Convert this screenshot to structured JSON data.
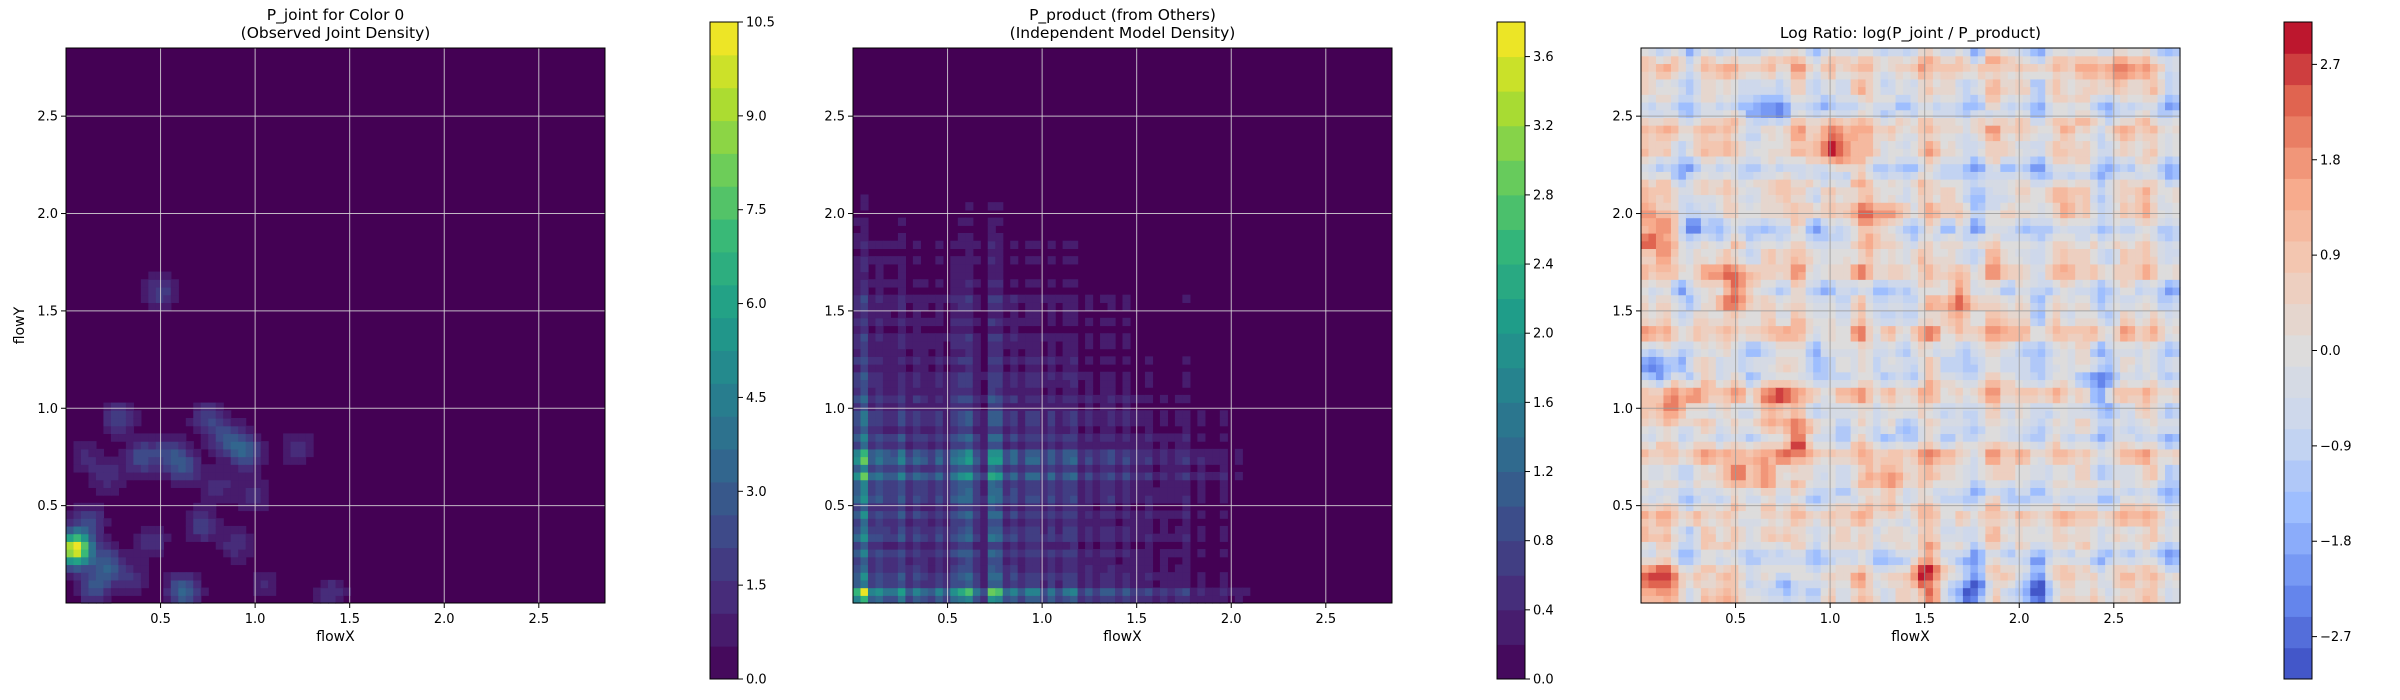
{
  "chart_data": [
    {
      "type": "heatmap",
      "title": "P_joint for Color 0\n(Observed Joint Density)",
      "xlabel": "flowX",
      "ylabel": "flowY",
      "xlim": [
        0.0,
        2.85
      ],
      "ylim": [
        0.0,
        2.85
      ],
      "xticks": [
        0.5,
        1.0,
        1.5,
        2.0,
        2.5
      ],
      "xtick_labels": [
        "0.5",
        "1.0",
        "1.5",
        "2.0",
        "2.5"
      ],
      "yticks": [
        0.5,
        1.0,
        1.5,
        2.0,
        2.5
      ],
      "ytick_labels": [
        "0.5",
        "1.0",
        "1.5",
        "2.0",
        "2.5"
      ],
      "grid": true,
      "colormap": "viridis",
      "colorbar": {
        "min": 0.0,
        "max": 10.5,
        "levels": 20,
        "ticks": [
          0.0,
          1.5,
          3.0,
          4.5,
          6.0,
          7.5,
          9.0,
          10.5
        ],
        "tick_labels": [
          "0.0",
          "1.5",
          "3.0",
          "4.5",
          "6.0",
          "7.5",
          "9.0",
          "10.5"
        ]
      },
      "hotspots": [
        {
          "x": 0.05,
          "y": 0.28,
          "value": 10.5
        },
        {
          "x": 0.22,
          "y": 0.2,
          "value": 3.0
        },
        {
          "x": 0.15,
          "y": 0.08,
          "value": 2.5
        },
        {
          "x": 0.62,
          "y": 0.06,
          "value": 3.5
        },
        {
          "x": 0.12,
          "y": 0.42,
          "value": 2.0
        },
        {
          "x": 0.28,
          "y": 0.95,
          "value": 2.0
        },
        {
          "x": 0.4,
          "y": 0.75,
          "value": 2.5
        },
        {
          "x": 0.55,
          "y": 0.78,
          "value": 2.0
        },
        {
          "x": 0.62,
          "y": 0.7,
          "value": 2.5
        },
        {
          "x": 0.75,
          "y": 0.95,
          "value": 2.0
        },
        {
          "x": 0.85,
          "y": 0.85,
          "value": 2.5
        },
        {
          "x": 0.95,
          "y": 0.78,
          "value": 3.0
        },
        {
          "x": 0.72,
          "y": 0.4,
          "value": 2.0
        },
        {
          "x": 0.9,
          "y": 0.3,
          "value": 1.5
        },
        {
          "x": 0.45,
          "y": 0.32,
          "value": 1.5
        },
        {
          "x": 0.35,
          "y": 0.12,
          "value": 1.5
        },
        {
          "x": 0.5,
          "y": 1.6,
          "value": 2.0
        },
        {
          "x": 1.22,
          "y": 0.8,
          "value": 1.5
        },
        {
          "x": 1.0,
          "y": 0.55,
          "value": 1.5
        },
        {
          "x": 1.4,
          "y": 0.05,
          "value": 1.5
        },
        {
          "x": 1.05,
          "y": 0.1,
          "value": 1.2
        },
        {
          "x": 0.22,
          "y": 0.65,
          "value": 1.5
        },
        {
          "x": 0.1,
          "y": 0.75,
          "value": 1.2
        },
        {
          "x": 0.8,
          "y": 0.6,
          "value": 1.5
        }
      ]
    },
    {
      "type": "heatmap",
      "title": "P_product (from Others)\n(Independent Model Density)",
      "xlabel": "flowX",
      "ylabel": "",
      "xlim": [
        0.0,
        2.85
      ],
      "ylim": [
        0.0,
        2.85
      ],
      "xticks": [
        0.5,
        1.0,
        1.5,
        2.0,
        2.5
      ],
      "xtick_labels": [
        "0.5",
        "1.0",
        "1.5",
        "2.0",
        "2.5"
      ],
      "yticks": [
        0.5,
        1.0,
        1.5,
        2.0,
        2.5
      ],
      "ytick_labels": [
        "0.5",
        "1.0",
        "1.5",
        "2.0",
        "2.5"
      ],
      "grid": true,
      "colormap": "viridis",
      "colorbar": {
        "min": 0.0,
        "max": 3.8,
        "levels": 19,
        "ticks": [
          0.0,
          0.4,
          0.8,
          1.2,
          1.6,
          2.0,
          2.4,
          2.8,
          3.2,
          3.6
        ],
        "tick_labels": [
          "0.0",
          "0.4",
          "0.8",
          "1.2",
          "1.6",
          "2.0",
          "2.4",
          "2.8",
          "3.2",
          "3.6"
        ]
      },
      "x_marginal_peaks": [
        {
          "x": 0.05,
          "w": 1.0
        },
        {
          "x": 0.15,
          "w": 0.5
        },
        {
          "x": 0.25,
          "w": 0.55
        },
        {
          "x": 0.35,
          "w": 0.45
        },
        {
          "x": 0.45,
          "w": 0.4
        },
        {
          "x": 0.55,
          "w": 0.55
        },
        {
          "x": 0.62,
          "w": 0.65
        },
        {
          "x": 0.75,
          "w": 0.9
        },
        {
          "x": 0.85,
          "w": 0.45
        },
        {
          "x": 0.95,
          "w": 0.5
        },
        {
          "x": 1.05,
          "w": 0.4
        },
        {
          "x": 1.15,
          "w": 0.5
        },
        {
          "x": 1.25,
          "w": 0.3
        },
        {
          "x": 1.35,
          "w": 0.35
        },
        {
          "x": 1.45,
          "w": 0.3
        },
        {
          "x": 1.55,
          "w": 0.25
        },
        {
          "x": 1.65,
          "w": 0.2
        },
        {
          "x": 1.75,
          "w": 0.25
        },
        {
          "x": 1.85,
          "w": 0.15
        },
        {
          "x": 1.95,
          "w": 0.15
        },
        {
          "x": 2.05,
          "w": 0.1
        }
      ],
      "y_marginal_peaks": [
        {
          "y": 0.05,
          "w": 1.0
        },
        {
          "y": 0.15,
          "w": 0.45
        },
        {
          "y": 0.25,
          "w": 0.4
        },
        {
          "y": 0.35,
          "w": 0.5
        },
        {
          "y": 0.45,
          "w": 0.45
        },
        {
          "y": 0.55,
          "w": 0.55
        },
        {
          "y": 0.65,
          "w": 0.75
        },
        {
          "y": 0.75,
          "w": 0.85
        },
        {
          "y": 0.85,
          "w": 0.45
        },
        {
          "y": 0.95,
          "w": 0.45
        },
        {
          "y": 1.05,
          "w": 0.35
        },
        {
          "y": 1.15,
          "w": 0.3
        },
        {
          "y": 1.25,
          "w": 0.25
        },
        {
          "y": 1.35,
          "w": 0.25
        },
        {
          "y": 1.45,
          "w": 0.2
        },
        {
          "y": 1.55,
          "w": 0.25
        },
        {
          "y": 1.65,
          "w": 0.15
        },
        {
          "y": 1.75,
          "w": 0.15
        },
        {
          "y": 1.85,
          "w": 0.15
        },
        {
          "y": 1.95,
          "w": 0.1
        },
        {
          "y": 2.05,
          "w": 0.08
        },
        {
          "y": 2.15,
          "w": 0.05
        }
      ]
    },
    {
      "type": "heatmap",
      "title": "Log Ratio: log(P_joint / P_product)",
      "xlabel": "flowX",
      "ylabel": "",
      "xlim": [
        0.0,
        2.85
      ],
      "ylim": [
        0.0,
        2.85
      ],
      "xticks": [
        0.5,
        1.0,
        1.5,
        2.0,
        2.5
      ],
      "xtick_labels": [
        "0.5",
        "1.0",
        "1.5",
        "2.0",
        "2.5"
      ],
      "yticks": [
        0.5,
        1.0,
        1.5,
        2.0,
        2.5
      ],
      "ytick_labels": [
        "0.5",
        "1.0",
        "1.5",
        "2.0",
        "2.5"
      ],
      "grid": true,
      "colormap": "coolwarm",
      "colorbar": {
        "min": -3.1,
        "max": 3.1,
        "levels": 21,
        "ticks": [
          -2.7,
          -1.8,
          -0.9,
          0.0,
          0.9,
          1.8,
          2.7
        ],
        "tick_labels": [
          "−2.7",
          "−1.8",
          "−0.9",
          "0.0",
          "0.9",
          "1.8",
          "2.7"
        ]
      },
      "hotspots": [
        {
          "x": 1.02,
          "y": 2.35,
          "value": 2.8
        },
        {
          "x": 0.1,
          "y": 1.9,
          "value": 2.4
        },
        {
          "x": 0.52,
          "y": 1.6,
          "value": 2.5
        },
        {
          "x": 1.68,
          "y": 1.55,
          "value": 2.4
        },
        {
          "x": 0.2,
          "y": 1.02,
          "value": 2.1
        },
        {
          "x": 0.68,
          "y": 1.02,
          "value": 2.1
        },
        {
          "x": 1.3,
          "y": 0.62,
          "value": 2.2
        },
        {
          "x": 0.6,
          "y": 0.68,
          "value": 2.4
        },
        {
          "x": 0.1,
          "y": 0.12,
          "value": 2.5
        },
        {
          "x": 1.5,
          "y": 0.15,
          "value": 2.0
        },
        {
          "x": 0.85,
          "y": 0.85,
          "value": 1.8
        },
        {
          "x": 1.25,
          "y": 1.95,
          "value": 2.0
        },
        {
          "x": 2.5,
          "y": 2.7,
          "value": 1.2
        },
        {
          "x": 1.75,
          "y": 0.05,
          "value": -2.8
        },
        {
          "x": 0.8,
          "y": 0.05,
          "value": -2.3
        },
        {
          "x": 2.1,
          "y": 0.05,
          "value": -2.2
        },
        {
          "x": 0.05,
          "y": 1.2,
          "value": -2.0
        },
        {
          "x": 0.35,
          "y": 2.0,
          "value": -1.9
        },
        {
          "x": 1.85,
          "y": 2.1,
          "value": -1.9
        },
        {
          "x": 2.4,
          "y": 1.1,
          "value": -1.6
        },
        {
          "x": 0.7,
          "y": 2.55,
          "value": -1.5
        }
      ]
    }
  ]
}
